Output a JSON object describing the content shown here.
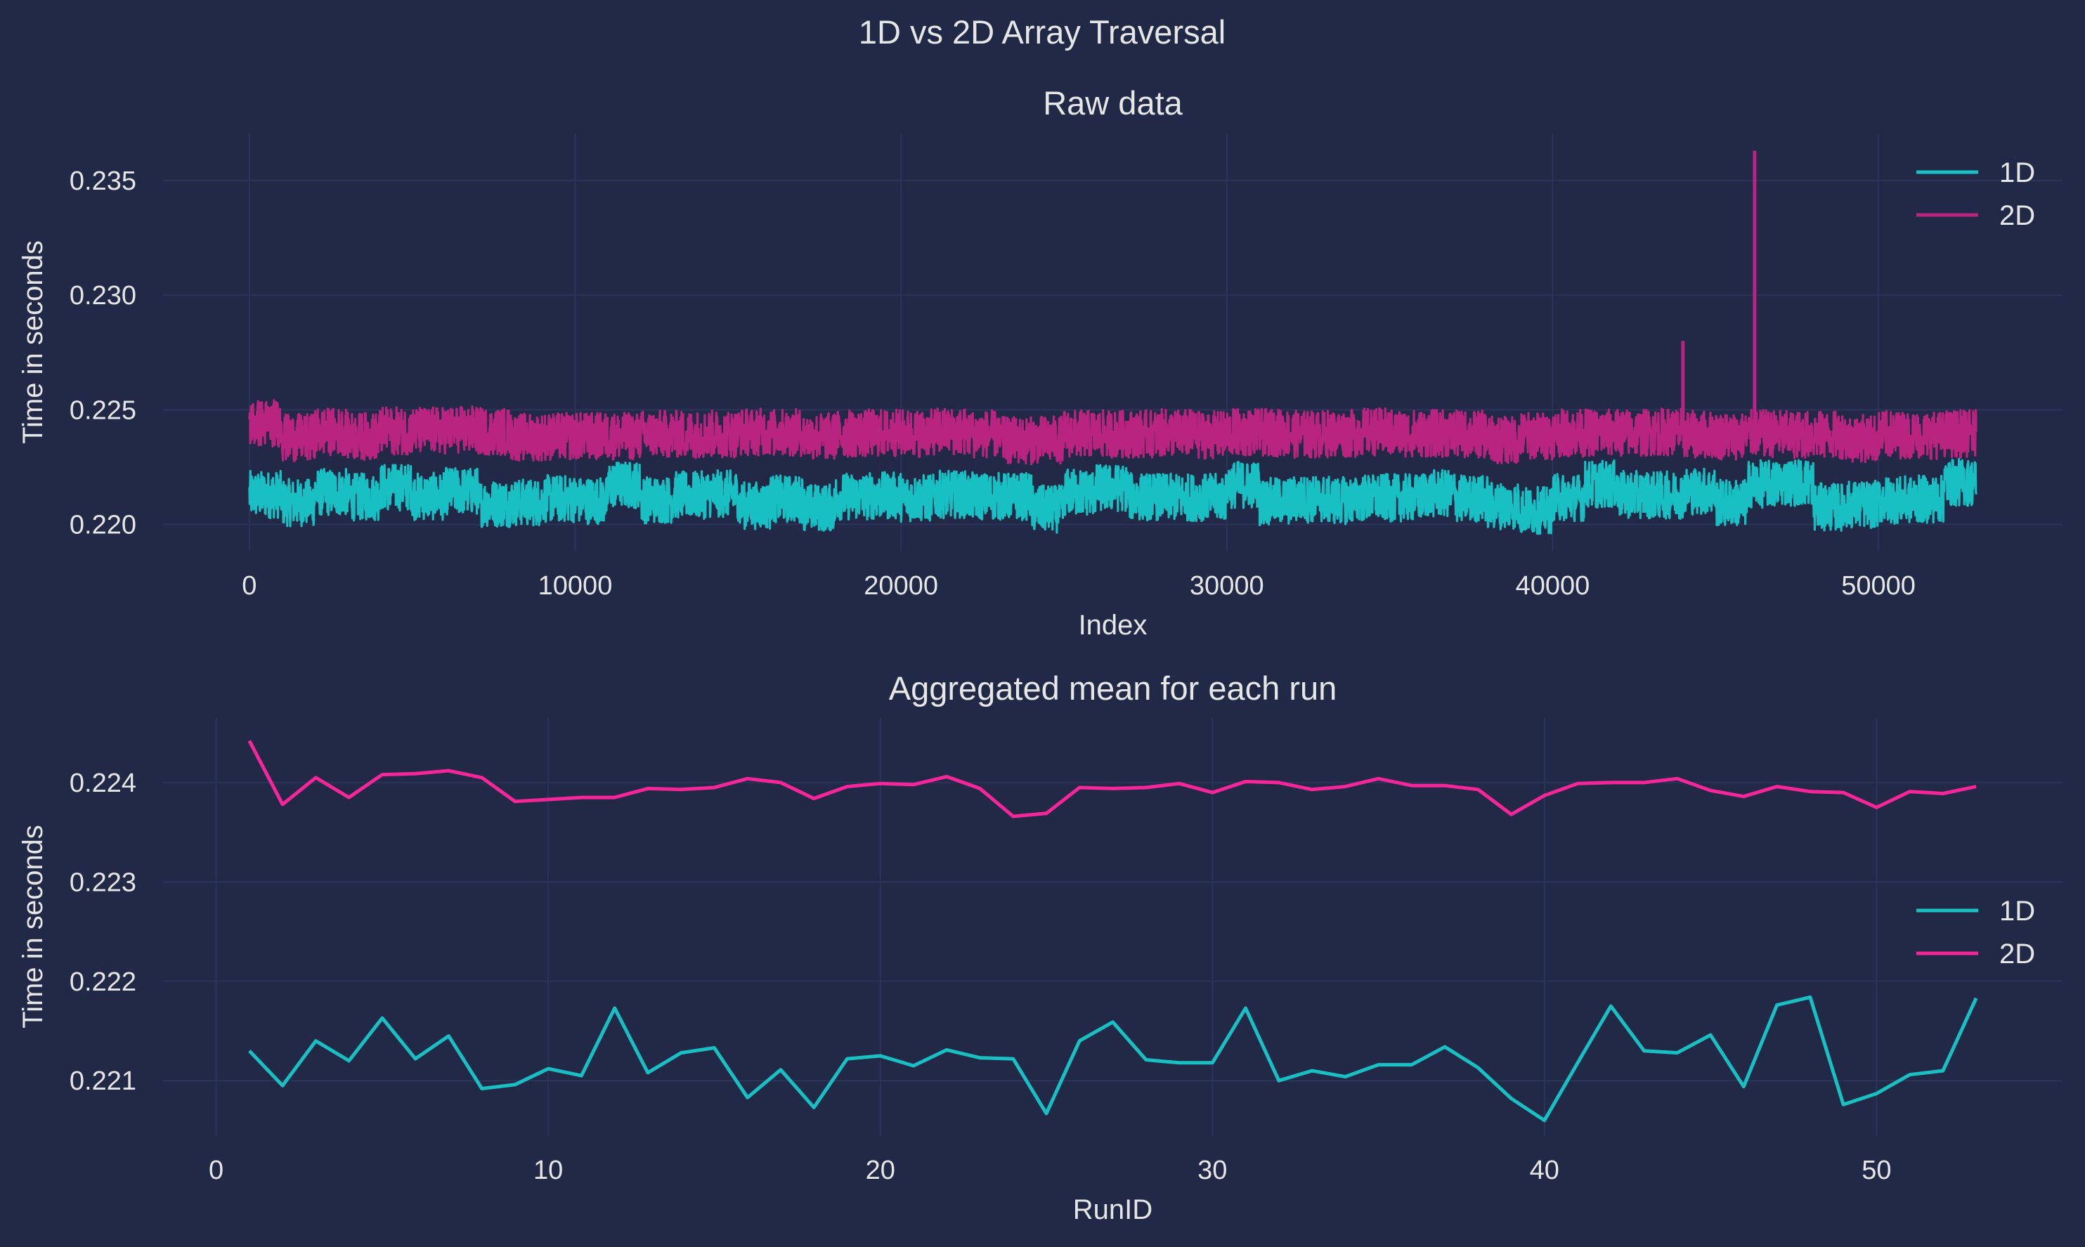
{
  "figure": {
    "suptitle": "1D vs 2D Array Traversal",
    "background": "#212946",
    "grid_color": "#2A3459",
    "text_color": "#E6E6E6"
  },
  "chart_data": [
    {
      "type": "line",
      "title": "Raw data",
      "xlabel": "Index",
      "ylabel": "Time in seconds",
      "xlim": [
        -2650,
        55650
      ],
      "ylim": [
        0.21885,
        0.23705
      ],
      "xticks": [
        0,
        10000,
        20000,
        30000,
        40000,
        50000
      ],
      "xtick_labels": [
        "0",
        "10000",
        "20000",
        "30000",
        "40000",
        "50000"
      ],
      "yticks": [
        0.22,
        0.225,
        0.23,
        0.235
      ],
      "ytick_labels": [
        "0.220",
        "0.225",
        "0.230",
        "0.235"
      ],
      "grid": true,
      "legend": {
        "location": "upper right",
        "entries": [
          "1D",
          "2D"
        ]
      },
      "series": [
        {
          "name": "1D",
          "color": "#18C0C4",
          "points": 53000,
          "approx_run_means_by_run": [
            0.2213,
            0.22095,
            0.2214,
            0.2212,
            0.22163,
            0.22122,
            0.22145,
            0.22092,
            0.22096,
            0.22112,
            0.22105,
            0.22173,
            0.22108,
            0.22128,
            0.22133,
            0.22083,
            0.22111,
            0.22073,
            0.22122,
            0.22125,
            0.22115,
            0.22131,
            0.22123,
            0.22122,
            0.22067,
            0.2214,
            0.22159,
            0.22121,
            0.22118,
            0.22118,
            0.22173,
            0.221,
            0.2211,
            0.22104,
            0.22116,
            0.22116,
            0.22134,
            0.22113,
            0.22082,
            0.2206,
            0.22118,
            0.22175,
            0.2213,
            0.22128,
            0.22146,
            0.22094,
            0.22176,
            0.22184,
            0.22076,
            0.22087,
            0.22106,
            0.2211,
            0.22183
          ],
          "band_min": 0.2196,
          "band_max": 0.2233
        },
        {
          "name": "2D",
          "color": "#B82480",
          "points": 53000,
          "approx_run_means_by_run": [
            0.22442,
            0.22378,
            0.22405,
            0.22385,
            0.22408,
            0.22409,
            0.22412,
            0.22405,
            0.22381,
            0.22383,
            0.22385,
            0.22385,
            0.22394,
            0.22393,
            0.22395,
            0.22404,
            0.224,
            0.22384,
            0.22396,
            0.22399,
            0.22398,
            0.22406,
            0.22394,
            0.22366,
            0.22369,
            0.22395,
            0.22394,
            0.22395,
            0.22399,
            0.2239,
            0.22401,
            0.224,
            0.22393,
            0.22396,
            0.22404,
            0.22397,
            0.22397,
            0.22393,
            0.22368,
            0.22387,
            0.22399,
            0.224,
            0.224,
            0.22404,
            0.22392,
            0.22386,
            0.22396,
            0.22391,
            0.2239,
            0.22375,
            0.22391,
            0.22389,
            0.22396
          ],
          "band_min": 0.222,
          "band_max": 0.2257,
          "spikes": [
            {
              "x": 44000,
              "y": 0.228
            },
            {
              "x": 46200,
              "y": 0.2363
            }
          ]
        }
      ]
    },
    {
      "type": "line",
      "title": "Aggregated mean for each run",
      "xlabel": "RunID",
      "ylabel": "Time in seconds",
      "xlim": [
        -1.6,
        55.6
      ],
      "ylim": [
        0.22045,
        0.22465
      ],
      "xticks": [
        0,
        10,
        20,
        30,
        40,
        50
      ],
      "xtick_labels": [
        "0",
        "10",
        "20",
        "30",
        "40",
        "50"
      ],
      "yticks": [
        0.221,
        0.222,
        0.223,
        0.224
      ],
      "ytick_labels": [
        "0.221",
        "0.222",
        "0.223",
        "0.224"
      ],
      "grid": true,
      "legend": {
        "location": "center right",
        "entries": [
          "1D",
          "2D"
        ]
      },
      "x": [
        1,
        2,
        3,
        4,
        5,
        6,
        7,
        8,
        9,
        10,
        11,
        12,
        13,
        14,
        15,
        16,
        17,
        18,
        19,
        20,
        21,
        22,
        23,
        24,
        25,
        26,
        27,
        28,
        29,
        30,
        31,
        32,
        33,
        34,
        35,
        36,
        37,
        38,
        39,
        40,
        41,
        42,
        43,
        44,
        45,
        46,
        47,
        48,
        49,
        50,
        51,
        52,
        53
      ],
      "series": [
        {
          "name": "1D",
          "color": "#18C0C4",
          "values": [
            0.2213,
            0.22095,
            0.2214,
            0.2212,
            0.22163,
            0.22122,
            0.22145,
            0.22092,
            0.22096,
            0.22112,
            0.22105,
            0.22173,
            0.22108,
            0.22128,
            0.22133,
            0.22083,
            0.22111,
            0.22073,
            0.22122,
            0.22125,
            0.22115,
            0.22131,
            0.22123,
            0.22122,
            0.22067,
            0.2214,
            0.22159,
            0.22121,
            0.22118,
            0.22118,
            0.22173,
            0.221,
            0.2211,
            0.22104,
            0.22116,
            0.22116,
            0.22134,
            0.22113,
            0.22082,
            0.2206,
            0.22118,
            0.22175,
            0.2213,
            0.22128,
            0.22146,
            0.22094,
            0.22176,
            0.22184,
            0.22076,
            0.22087,
            0.22106,
            0.2211,
            0.22183
          ]
        },
        {
          "name": "2D",
          "color": "#F5259A",
          "values": [
            0.22442,
            0.22378,
            0.22405,
            0.22385,
            0.22408,
            0.22409,
            0.22412,
            0.22405,
            0.22381,
            0.22383,
            0.22385,
            0.22385,
            0.22394,
            0.22393,
            0.22395,
            0.22404,
            0.224,
            0.22384,
            0.22396,
            0.22399,
            0.22398,
            0.22406,
            0.22394,
            0.22366,
            0.22369,
            0.22395,
            0.22394,
            0.22395,
            0.22399,
            0.2239,
            0.22401,
            0.224,
            0.22393,
            0.22396,
            0.22404,
            0.22397,
            0.22397,
            0.22393,
            0.22368,
            0.22387,
            0.22399,
            0.224,
            0.224,
            0.22404,
            0.22392,
            0.22386,
            0.22396,
            0.22391,
            0.2239,
            0.22375,
            0.22391,
            0.22389,
            0.22396
          ]
        }
      ]
    }
  ]
}
